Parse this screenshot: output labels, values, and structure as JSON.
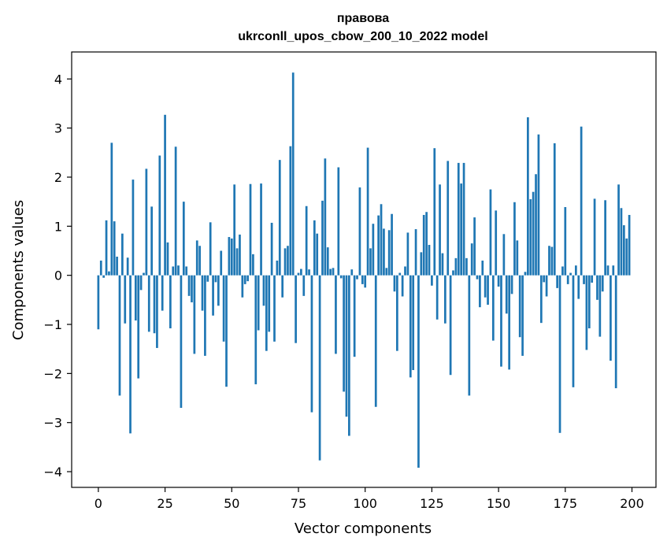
{
  "chart_data": {
    "type": "bar",
    "title_line1": "правова",
    "title_line2": "ukrconll_upos_cbow_200_10_2022 model",
    "xlabel": "Vector components",
    "ylabel": "Components values",
    "xlim": [
      -10,
      209
    ],
    "ylim": [
      -4.32,
      4.55
    ],
    "xticks": [
      0,
      25,
      50,
      75,
      100,
      125,
      150,
      175,
      200
    ],
    "yticks": [
      -4,
      -3,
      -2,
      -1,
      0,
      1,
      2,
      3,
      4
    ],
    "bar_color": "#1f77b4",
    "grid": false,
    "values": [
      -1.1,
      0.3,
      -0.05,
      1.12,
      0.08,
      2.7,
      1.1,
      0.38,
      -2.45,
      0.85,
      -0.98,
      0.36,
      -3.22,
      1.95,
      -0.92,
      -2.1,
      -0.3,
      0.05,
      2.17,
      -1.15,
      1.4,
      -1.18,
      -1.48,
      2.44,
      -0.72,
      3.27,
      0.67,
      -1.08,
      0.18,
      2.62,
      0.2,
      -2.7,
      1.5,
      0.18,
      -0.42,
      -0.55,
      -1.6,
      0.71,
      0.6,
      -0.72,
      -1.64,
      -0.13,
      1.08,
      -0.82,
      -0.14,
      -0.62,
      0.5,
      -1.35,
      -2.27,
      0.78,
      0.75,
      1.85,
      0.55,
      0.83,
      -0.45,
      -0.18,
      -0.12,
      1.86,
      0.43,
      -2.22,
      -1.12,
      1.87,
      -0.62,
      -1.54,
      -1.15,
      1.07,
      -1.35,
      0.3,
      2.35,
      -0.45,
      0.55,
      0.6,
      2.63,
      4.13,
      -1.38,
      0.05,
      0.13,
      -0.42,
      1.41,
      0.12,
      -2.79,
      1.12,
      0.85,
      -3.77,
      1.52,
      2.38,
      0.57,
      0.13,
      0.15,
      -1.6,
      2.2,
      -0.06,
      -2.37,
      -2.88,
      -3.27,
      0.12,
      -1.66,
      -0.08,
      1.79,
      -0.18,
      -0.25,
      2.6,
      0.55,
      1.05,
      -2.68,
      1.22,
      1.45,
      0.95,
      0.15,
      0.92,
      1.25,
      -0.33,
      -1.54,
      0.05,
      -0.43,
      0.18,
      0.87,
      -2.08,
      -1.93,
      0.94,
      -3.92,
      0.47,
      1.23,
      1.29,
      0.62,
      -0.21,
      2.59,
      -0.9,
      1.85,
      0.45,
      -0.98,
      2.33,
      -2.03,
      0.1,
      0.35,
      2.29,
      1.87,
      2.29,
      0.35,
      -2.45,
      0.65,
      1.18,
      -0.08,
      -0.65,
      0.3,
      -0.45,
      -0.6,
      1.75,
      -1.33,
      1.32,
      -0.23,
      -1.86,
      0.84,
      -0.78,
      -1.92,
      -0.38,
      1.49,
      0.71,
      -1.26,
      -1.64,
      0.07,
      3.22,
      1.55,
      1.7,
      2.06,
      2.87,
      -0.97,
      -0.14,
      -0.43,
      0.6,
      0.58,
      2.69,
      -0.26,
      -3.21,
      0.18,
      1.39,
      -0.18,
      0.05,
      -2.28,
      0.2,
      -0.48,
      3.03,
      -0.18,
      -1.52,
      -1.08,
      -0.15,
      1.56,
      -0.5,
      -1.25,
      -0.33,
      1.53,
      0.2,
      -1.74,
      0.2,
      -2.3,
      1.85,
      1.37,
      1.02,
      0.75,
      1.23
    ]
  }
}
